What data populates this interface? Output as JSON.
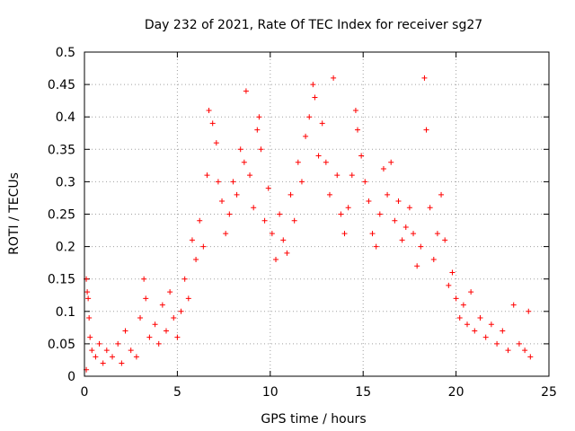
{
  "chart_data": {
    "type": "scatter",
    "title": "Day 232 of 2021, Rate Of TEC Index for receiver sg27",
    "xlabel": "GPS time / hours",
    "ylabel": "ROTI / TECUs",
    "xlim": [
      0,
      25
    ],
    "ylim": [
      0,
      0.5
    ],
    "x_ticks": [
      0,
      5,
      10,
      15,
      20,
      25
    ],
    "y_ticks": [
      0,
      0.05,
      0.1,
      0.15,
      0.2,
      0.25,
      0.3,
      0.35,
      0.4,
      0.45,
      0.5
    ],
    "x_tick_labels": [
      "0",
      "5",
      "10",
      "15",
      "20",
      "25"
    ],
    "y_tick_labels": [
      "0",
      "0.05",
      "0.1",
      "0.15",
      "0.2",
      "0.25",
      "0.3",
      "0.35",
      "0.4",
      "0.45",
      "0.5"
    ],
    "grid": true,
    "marker": "+",
    "color": "#ff0000",
    "series": [
      {
        "name": "ROTI",
        "points": [
          [
            0.1,
            0.01
          ],
          [
            0.1,
            0.15
          ],
          [
            0.15,
            0.13
          ],
          [
            0.2,
            0.12
          ],
          [
            0.25,
            0.09
          ],
          [
            0.3,
            0.06
          ],
          [
            0.4,
            0.04
          ],
          [
            0.6,
            0.03
          ],
          [
            0.8,
            0.05
          ],
          [
            1.0,
            0.02
          ],
          [
            1.2,
            0.04
          ],
          [
            1.5,
            0.03
          ],
          [
            1.8,
            0.05
          ],
          [
            2.0,
            0.02
          ],
          [
            2.2,
            0.07
          ],
          [
            2.5,
            0.04
          ],
          [
            2.8,
            0.03
          ],
          [
            3.0,
            0.09
          ],
          [
            3.2,
            0.15
          ],
          [
            3.3,
            0.12
          ],
          [
            3.5,
            0.06
          ],
          [
            3.8,
            0.08
          ],
          [
            4.0,
            0.05
          ],
          [
            4.2,
            0.11
          ],
          [
            4.4,
            0.07
          ],
          [
            4.6,
            0.13
          ],
          [
            4.8,
            0.09
          ],
          [
            5.0,
            0.06
          ],
          [
            5.2,
            0.1
          ],
          [
            5.4,
            0.15
          ],
          [
            5.6,
            0.12
          ],
          [
            5.8,
            0.21
          ],
          [
            6.0,
            0.18
          ],
          [
            6.2,
            0.24
          ],
          [
            6.4,
            0.2
          ],
          [
            6.6,
            0.31
          ],
          [
            6.7,
            0.41
          ],
          [
            6.9,
            0.39
          ],
          [
            7.1,
            0.36
          ],
          [
            7.2,
            0.3
          ],
          [
            7.4,
            0.27
          ],
          [
            7.6,
            0.22
          ],
          [
            7.8,
            0.25
          ],
          [
            8.0,
            0.3
          ],
          [
            8.2,
            0.28
          ],
          [
            8.4,
            0.35
          ],
          [
            8.6,
            0.33
          ],
          [
            8.7,
            0.44
          ],
          [
            8.9,
            0.31
          ],
          [
            9.1,
            0.26
          ],
          [
            9.3,
            0.38
          ],
          [
            9.4,
            0.4
          ],
          [
            9.5,
            0.35
          ],
          [
            9.7,
            0.24
          ],
          [
            9.9,
            0.29
          ],
          [
            10.1,
            0.22
          ],
          [
            10.3,
            0.18
          ],
          [
            10.5,
            0.25
          ],
          [
            10.7,
            0.21
          ],
          [
            10.9,
            0.19
          ],
          [
            11.1,
            0.28
          ],
          [
            11.3,
            0.24
          ],
          [
            11.5,
            0.33
          ],
          [
            11.7,
            0.3
          ],
          [
            11.9,
            0.37
          ],
          [
            12.1,
            0.4
          ],
          [
            12.3,
            0.45
          ],
          [
            12.4,
            0.43
          ],
          [
            12.6,
            0.34
          ],
          [
            12.8,
            0.39
          ],
          [
            13.0,
            0.33
          ],
          [
            13.2,
            0.28
          ],
          [
            13.4,
            0.46
          ],
          [
            13.6,
            0.31
          ],
          [
            13.8,
            0.25
          ],
          [
            14.0,
            0.22
          ],
          [
            14.2,
            0.26
          ],
          [
            14.4,
            0.31
          ],
          [
            14.6,
            0.41
          ],
          [
            14.7,
            0.38
          ],
          [
            14.9,
            0.34
          ],
          [
            15.1,
            0.3
          ],
          [
            15.3,
            0.27
          ],
          [
            15.5,
            0.22
          ],
          [
            15.7,
            0.2
          ],
          [
            15.9,
            0.25
          ],
          [
            16.1,
            0.32
          ],
          [
            16.3,
            0.28
          ],
          [
            16.5,
            0.33
          ],
          [
            16.7,
            0.24
          ],
          [
            16.9,
            0.27
          ],
          [
            17.1,
            0.21
          ],
          [
            17.3,
            0.23
          ],
          [
            17.5,
            0.26
          ],
          [
            17.7,
            0.22
          ],
          [
            17.9,
            0.17
          ],
          [
            18.1,
            0.2
          ],
          [
            18.3,
            0.46
          ],
          [
            18.4,
            0.38
          ],
          [
            18.6,
            0.26
          ],
          [
            18.8,
            0.18
          ],
          [
            19.0,
            0.22
          ],
          [
            19.2,
            0.28
          ],
          [
            19.4,
            0.21
          ],
          [
            19.6,
            0.14
          ],
          [
            19.8,
            0.16
          ],
          [
            20.0,
            0.12
          ],
          [
            20.2,
            0.09
          ],
          [
            20.4,
            0.11
          ],
          [
            20.6,
            0.08
          ],
          [
            20.8,
            0.13
          ],
          [
            21.0,
            0.07
          ],
          [
            21.3,
            0.09
          ],
          [
            21.6,
            0.06
          ],
          [
            21.9,
            0.08
          ],
          [
            22.2,
            0.05
          ],
          [
            22.5,
            0.07
          ],
          [
            22.8,
            0.04
          ],
          [
            23.1,
            0.11
          ],
          [
            23.4,
            0.05
          ],
          [
            23.7,
            0.04
          ],
          [
            23.9,
            0.1
          ],
          [
            24.0,
            0.03
          ]
        ]
      }
    ]
  }
}
